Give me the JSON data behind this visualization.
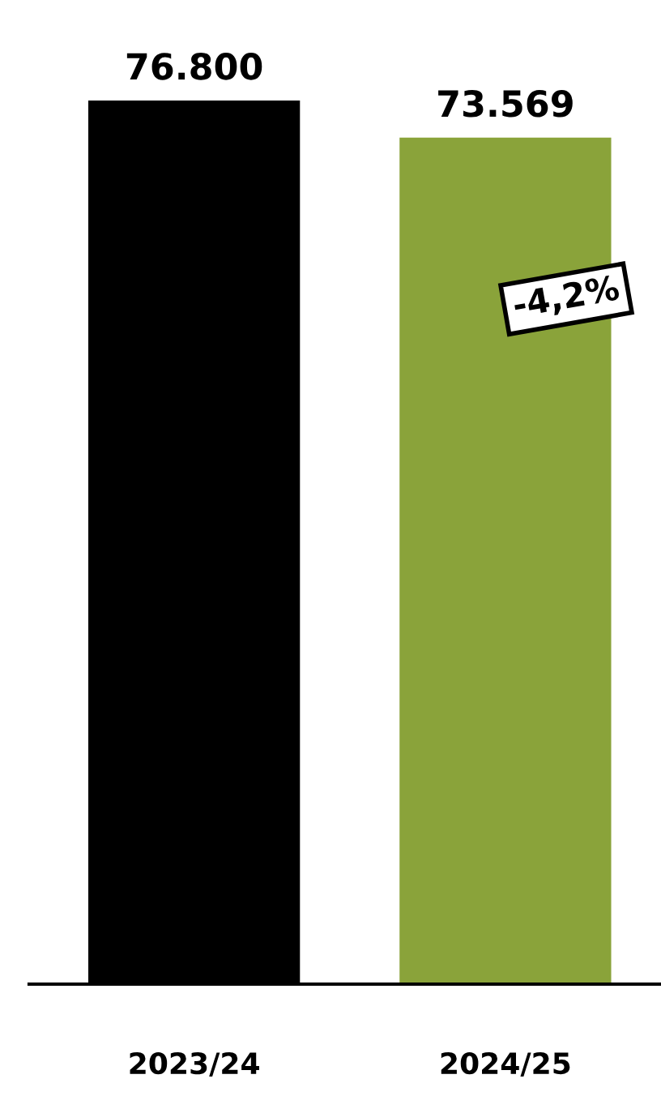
{
  "chart_data": {
    "type": "bar",
    "categories": [
      "2023/24",
      "2024/25"
    ],
    "series": [
      {
        "values": [
          76800,
          73569
        ],
        "colors": [
          "#000000",
          "#8aa33a"
        ],
        "value_labels": [
          "76.800",
          "73.569"
        ]
      }
    ],
    "annotations": [
      "-4,2%"
    ],
    "grid": false,
    "legend": false
  }
}
